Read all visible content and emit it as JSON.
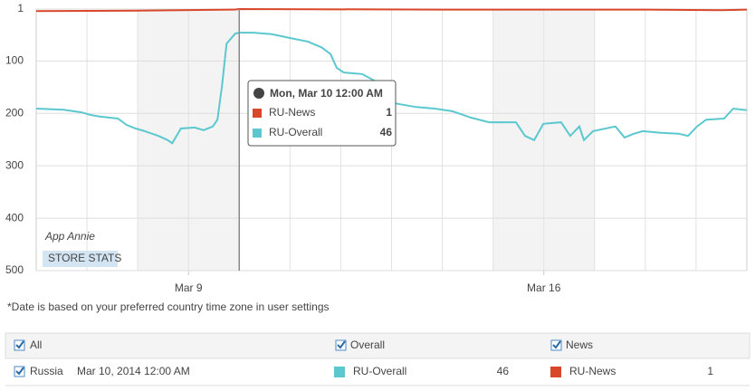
{
  "chart_data": {
    "type": "line",
    "ylim": [
      500,
      1
    ],
    "yticks": [
      1,
      100,
      200,
      300,
      400,
      500
    ],
    "xlim": [
      6,
      20
    ],
    "xticks": [
      {
        "value": 9,
        "label": "Mar 9"
      },
      {
        "value": 16,
        "label": "Mar 16"
      }
    ],
    "xgrid": [
      7,
      8,
      9,
      10,
      11,
      12,
      13,
      14,
      15,
      16,
      17,
      18,
      19
    ],
    "shaded_ranges": [
      [
        8,
        10
      ],
      [
        15,
        17
      ]
    ],
    "crosshair_x": 10,
    "series": [
      {
        "name": "RU-News",
        "color": "#d9472b",
        "x": [
          6,
          8,
          9.9,
          10,
          14,
          18,
          19.5,
          20
        ],
        "values": [
          5,
          4,
          2,
          1,
          2,
          2,
          3,
          2
        ]
      },
      {
        "name": "RU-Overall",
        "color": "#5bc8cf",
        "x": [
          6,
          6.54,
          6.89,
          7.07,
          7.25,
          7.61,
          7.78,
          7.96,
          8.14,
          8.41,
          8.59,
          8.68,
          8.85,
          9.12,
          9.3,
          9.48,
          9.57,
          9.66,
          9.75,
          9.92,
          10,
          10.28,
          10.64,
          10.99,
          11.35,
          11.62,
          11.8,
          11.92,
          12.06,
          12.42,
          12.69,
          12.78,
          13.13,
          13.49,
          13.85,
          14.2,
          14.56,
          14.92,
          15.45,
          15.63,
          15.81,
          15.99,
          16.34,
          16.52,
          16.7,
          16.79,
          16.97,
          17.41,
          17.59,
          17.77,
          17.95,
          18.31,
          18.66,
          18.84,
          19.02,
          19.2,
          19.55,
          19.73,
          20
        ],
        "values": [
          191,
          193,
          198,
          203,
          206,
          210,
          222,
          229,
          234,
          243,
          251,
          257,
          229,
          227,
          232,
          225,
          212,
          148,
          67,
          48,
          46,
          46,
          49,
          56,
          63,
          74,
          87,
          113,
          122,
          125,
          139,
          174,
          182,
          188,
          191,
          196,
          208,
          217,
          217,
          243,
          251,
          220,
          217,
          243,
          225,
          251,
          234,
          225,
          246,
          239,
          234,
          237,
          239,
          243,
          225,
          212,
          210,
          191,
          194
        ]
      }
    ],
    "tooltip": {
      "title": "Mon, Mar 10 12:00 AM"
    },
    "watermark": {
      "title": "App Annie",
      "subtitle": "STORE STATS"
    }
  },
  "note": "*Date is based on your preferred country time zone in user settings",
  "table": {
    "headers": [
      "All",
      "Overall",
      "News"
    ],
    "row": {
      "country": "Russia",
      "date": "Mar 10, 2014 12:00 AM"
    }
  }
}
